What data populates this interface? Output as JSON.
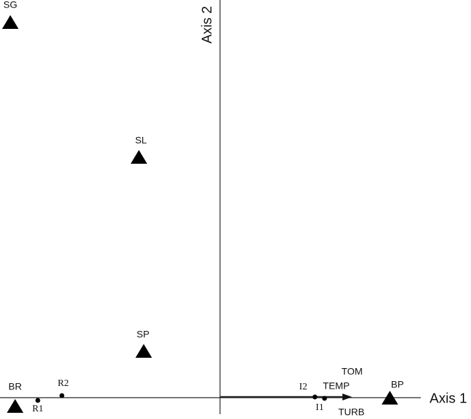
{
  "axes": {
    "x": "Axis 1",
    "y": "Axis 2"
  },
  "sites": [
    {
      "label": "SG"
    },
    {
      "label": "SL"
    },
    {
      "label": "SP"
    },
    {
      "label": "BR"
    },
    {
      "label": "BP"
    }
  ],
  "samples": [
    {
      "label": "R1"
    },
    {
      "label": "R2"
    },
    {
      "label": "I2"
    },
    {
      "label": "I1"
    }
  ],
  "variables": [
    {
      "label": "TOM"
    },
    {
      "label": "TEMP"
    },
    {
      "label": "TURB"
    }
  ]
}
